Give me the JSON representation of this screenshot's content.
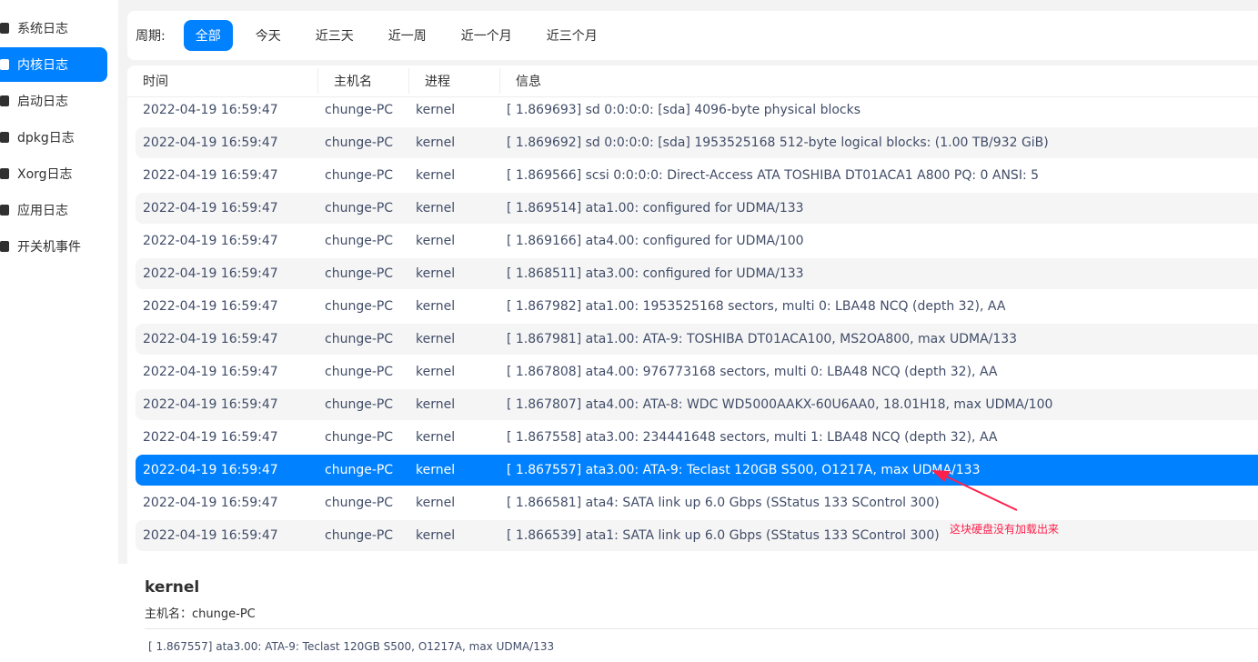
{
  "sidebar": {
    "items": [
      {
        "label": "系统日志",
        "icon": "document-icon"
      },
      {
        "label": "内核日志",
        "icon": "kernel-icon",
        "active": true
      },
      {
        "label": "启动日志",
        "icon": "boot-icon"
      },
      {
        "label": "dpkg日志",
        "icon": "package-icon"
      },
      {
        "label": "Xorg日志",
        "icon": "xorg-icon"
      },
      {
        "label": "应用日志",
        "icon": "app-icon"
      },
      {
        "label": "开关机事件",
        "icon": "power-icon"
      }
    ]
  },
  "filter": {
    "label": "周期:",
    "options": [
      "全部",
      "今天",
      "近三天",
      "近一周",
      "近一个月",
      "近三个月"
    ],
    "selected": "全部"
  },
  "table": {
    "headers": [
      "时间",
      "主机名",
      "进程",
      "信息"
    ],
    "rows": [
      [
        "2022-04-19 16:59:47",
        "chunge-PC",
        "kernel",
        "[ 1.869693] sd 0:0:0:0: [sda] 4096-byte physical blocks"
      ],
      [
        "2022-04-19 16:59:47",
        "chunge-PC",
        "kernel",
        "[ 1.869692] sd 0:0:0:0: [sda] 1953525168 512-byte logical blocks: (1.00 TB/932 GiB)"
      ],
      [
        "2022-04-19 16:59:47",
        "chunge-PC",
        "kernel",
        "[ 1.869566] scsi 0:0:0:0: Direct-Access ATA TOSHIBA DT01ACA1 A800 PQ: 0 ANSI: 5"
      ],
      [
        "2022-04-19 16:59:47",
        "chunge-PC",
        "kernel",
        "[ 1.869514] ata1.00: configured for UDMA/133"
      ],
      [
        "2022-04-19 16:59:47",
        "chunge-PC",
        "kernel",
        "[ 1.869166] ata4.00: configured for UDMA/100"
      ],
      [
        "2022-04-19 16:59:47",
        "chunge-PC",
        "kernel",
        "[ 1.868511] ata3.00: configured for UDMA/133"
      ],
      [
        "2022-04-19 16:59:47",
        "chunge-PC",
        "kernel",
        "[ 1.867982] ata1.00: 1953525168 sectors, multi 0: LBA48 NCQ (depth 32), AA"
      ],
      [
        "2022-04-19 16:59:47",
        "chunge-PC",
        "kernel",
        "[ 1.867981] ata1.00: ATA-9: TOSHIBA DT01ACA100, MS2OA800, max UDMA/133"
      ],
      [
        "2022-04-19 16:59:47",
        "chunge-PC",
        "kernel",
        "[ 1.867808] ata4.00: 976773168 sectors, multi 0: LBA48 NCQ (depth 32), AA"
      ],
      [
        "2022-04-19 16:59:47",
        "chunge-PC",
        "kernel",
        "[ 1.867807] ata4.00: ATA-8: WDC WD5000AAKX-60U6AA0, 18.01H18, max UDMA/100"
      ],
      [
        "2022-04-19 16:59:47",
        "chunge-PC",
        "kernel",
        "[ 1.867558] ata3.00: 234441648 sectors, multi 1: LBA48 NCQ (depth 32), AA"
      ],
      [
        "2022-04-19 16:59:47",
        "chunge-PC",
        "kernel",
        "[ 1.867557] ata3.00: ATA-9: Teclast 120GB S500, O1217A, max UDMA/133"
      ],
      [
        "2022-04-19 16:59:47",
        "chunge-PC",
        "kernel",
        "[ 1.866581] ata4: SATA link up 6.0 Gbps (SStatus 133 SControl 300)"
      ],
      [
        "2022-04-19 16:59:47",
        "chunge-PC",
        "kernel",
        "[ 1.866539] ata1: SATA link up 6.0 Gbps (SStatus 133 SControl 300)"
      ]
    ],
    "selected_index": 11
  },
  "detail": {
    "title": "kernel",
    "host_label": "主机名：",
    "host": "chunge-PC",
    "message": "[ 1.867557] ata3.00: ATA-9: Teclast 120GB S500, O1217A, max UDMA/133"
  },
  "annotation": {
    "text": "这块硬盘没有加载出来",
    "color": "#ff1f4b"
  },
  "colors": {
    "accent": "#0081ff"
  }
}
